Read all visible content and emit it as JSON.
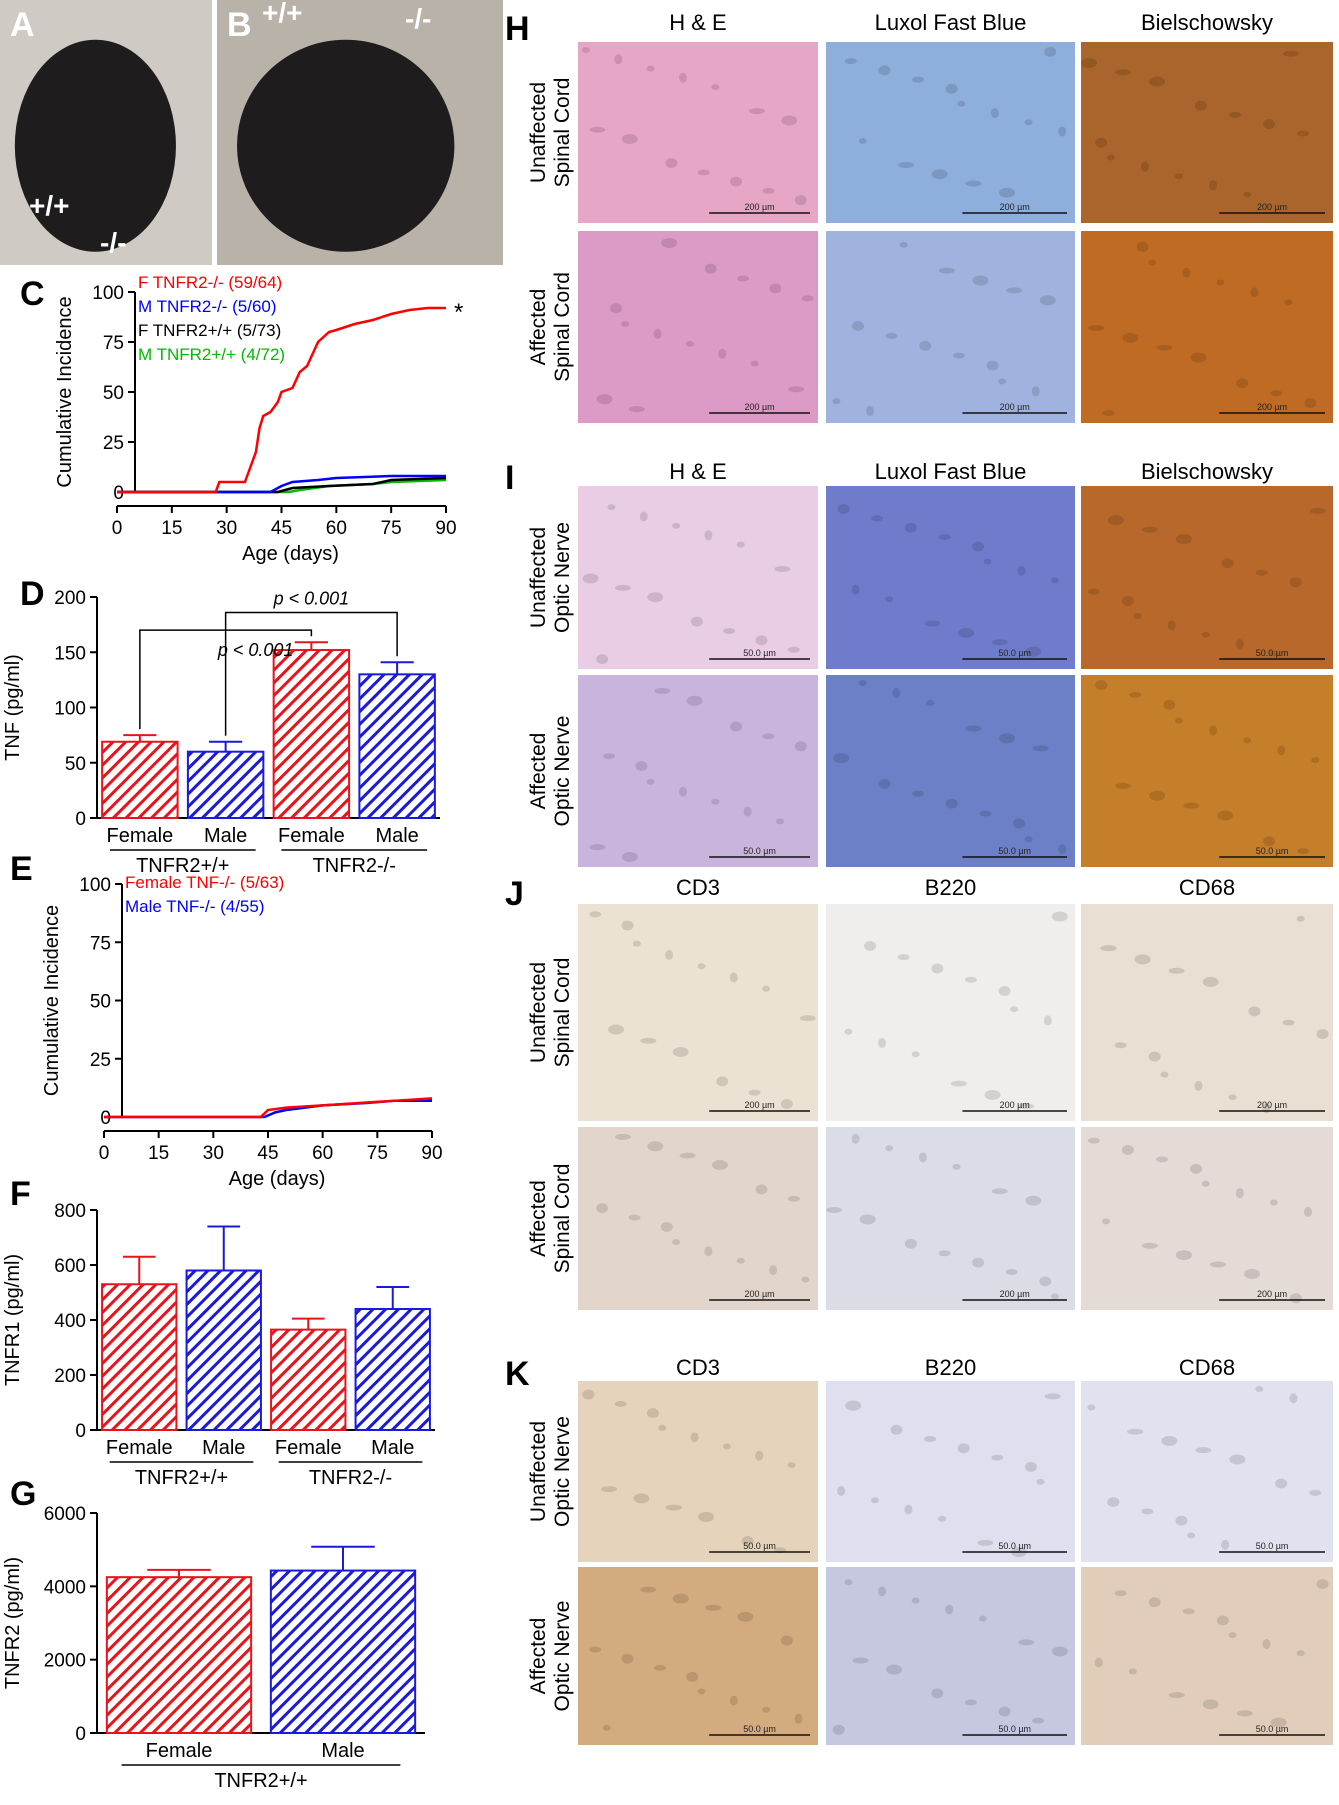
{
  "panels": [
    {
      "letter": "A",
      "labels": [
        "+/+",
        "-/-"
      ]
    },
    {
      "letter": "B",
      "labels": [
        "+/+",
        "-/-"
      ]
    }
  ],
  "chart_data": [
    {
      "type": "line",
      "panel": "C",
      "xlabel": "Age (days)",
      "ylabel": "Cumulative Incidence",
      "xlim": [
        0,
        90
      ],
      "xticks": [
        0,
        15,
        30,
        45,
        60,
        75,
        90
      ],
      "ylim": [
        0,
        100
      ],
      "yticks": [
        0,
        25,
        50,
        75,
        100
      ],
      "annotation": "*",
      "series": [
        {
          "name": "F TNFR2-/- (59/64)",
          "color": "#ff0000",
          "x": [
            0,
            27,
            28,
            35,
            36,
            38,
            39,
            40,
            42,
            44,
            45,
            48,
            50,
            52,
            55,
            58,
            60,
            65,
            70,
            75,
            80,
            85,
            90
          ],
          "values": [
            0,
            0,
            5,
            5,
            10,
            20,
            32,
            38,
            40,
            45,
            50,
            52,
            60,
            63,
            75,
            80,
            81,
            84,
            86,
            89,
            91,
            92,
            92
          ]
        },
        {
          "name": "M TNFR2-/- (5/60)",
          "color": "#0000ff",
          "x": [
            0,
            42,
            45,
            48,
            55,
            60,
            75,
            90
          ],
          "values": [
            0,
            0,
            3,
            5,
            6,
            7,
            8,
            8
          ]
        },
        {
          "name": "F TNFR2+/+ (5/73)",
          "color": "#000000",
          "x": [
            0,
            44,
            48,
            58,
            70,
            75,
            90
          ],
          "values": [
            0,
            0,
            2,
            3,
            4,
            6,
            7
          ]
        },
        {
          "name": "M TNFR2+/+ (4/72)",
          "color": "#00bb00",
          "x": [
            0,
            47,
            50,
            58,
            70,
            75,
            90
          ],
          "values": [
            0,
            0,
            1,
            3,
            4,
            5,
            6
          ]
        }
      ]
    },
    {
      "type": "bar",
      "panel": "D",
      "ylabel": "TNF (pg/ml)",
      "ylim": [
        0,
        200
      ],
      "yticks": [
        0,
        50,
        100,
        150,
        200
      ],
      "categories": [
        "Female",
        "Male",
        "Female",
        "Male"
      ],
      "groups": [
        "TNFR2+/+",
        "TNFR2-/-"
      ],
      "values": [
        69,
        60,
        152,
        130
      ],
      "errors": [
        6,
        9,
        7,
        11
      ],
      "colors": [
        "#e8141b",
        "#1a1adb",
        "#e8141b",
        "#1a1adb"
      ],
      "comparisons": [
        {
          "label": "p < 0.001",
          "pair": [
            0,
            2
          ]
        },
        {
          "label": "p < 0.001",
          "pair": [
            1,
            3
          ]
        }
      ]
    },
    {
      "type": "line",
      "panel": "E",
      "xlabel": "Age (days)",
      "ylabel": "Cumulative Incidence",
      "xlim": [
        0,
        90
      ],
      "xticks": [
        0,
        15,
        30,
        45,
        60,
        75,
        90
      ],
      "ylim": [
        0,
        100
      ],
      "yticks": [
        0,
        25,
        50,
        75,
        100
      ],
      "series": [
        {
          "name": "Female TNF-/- (5/63)",
          "color": "#ff0000",
          "x": [
            0,
            43,
            45,
            50,
            60,
            70,
            80,
            90
          ],
          "values": [
            0,
            0,
            3,
            4,
            5,
            6,
            7,
            8
          ]
        },
        {
          "name": "Male TNF-/- (4/55)",
          "color": "#0000ff",
          "x": [
            0,
            44,
            47,
            50,
            60,
            72,
            80,
            90
          ],
          "values": [
            0,
            0,
            2,
            3,
            5,
            6,
            7,
            7
          ]
        }
      ]
    },
    {
      "type": "bar",
      "panel": "F",
      "ylabel": "TNFR1 (pg/ml)",
      "ylim": [
        0,
        800
      ],
      "yticks": [
        0,
        200,
        400,
        600,
        800
      ],
      "categories": [
        "Female",
        "Male",
        "Female",
        "Male"
      ],
      "groups": [
        "TNFR2+/+",
        "TNFR2-/-"
      ],
      "values": [
        530,
        580,
        365,
        440
      ],
      "errors": [
        100,
        160,
        40,
        80
      ],
      "colors": [
        "#e8141b",
        "#1a1adb",
        "#e8141b",
        "#1a1adb"
      ]
    },
    {
      "type": "bar",
      "panel": "G",
      "ylabel": "TNFR2 (pg/ml)",
      "ylim": [
        0,
        6000
      ],
      "yticks": [
        0,
        2000,
        4000,
        6000
      ],
      "categories": [
        "Female",
        "Male"
      ],
      "groups": [
        "TNFR2+/+"
      ],
      "values": [
        4250,
        4430
      ],
      "errors": [
        200,
        650
      ],
      "colors": [
        "#e8141b",
        "#1a1adb"
      ]
    }
  ],
  "histology": [
    {
      "letter": "H",
      "columns": [
        "H & E",
        "Luxol Fast Blue",
        "Bielschowsky"
      ],
      "rows": [
        [
          "Unaffected",
          "Spinal Cord"
        ],
        [
          "Affected",
          "Spinal Cord"
        ]
      ],
      "scale_bar": "200 µm"
    },
    {
      "letter": "I",
      "columns": [
        "H & E",
        "Luxol Fast Blue",
        "Bielschowsky"
      ],
      "rows": [
        [
          "Unaffected",
          "Optic Nerve"
        ],
        [
          "Affected",
          "Optic Nerve"
        ]
      ],
      "scale_bar": "50.0 µm"
    },
    {
      "letter": "J",
      "columns": [
        "CD3",
        "B220",
        "CD68"
      ],
      "rows": [
        [
          "Unaffected",
          "Spinal Cord"
        ],
        [
          "Affected",
          "Spinal Cord"
        ]
      ],
      "scale_bar": "200 µm"
    },
    {
      "letter": "K",
      "columns": [
        "CD3",
        "B220",
        "CD68"
      ],
      "rows": [
        [
          "Unaffected",
          "Optic Nerve"
        ],
        [
          "Affected",
          "Optic Nerve"
        ]
      ],
      "scale_bar": "50.0 µm"
    }
  ]
}
